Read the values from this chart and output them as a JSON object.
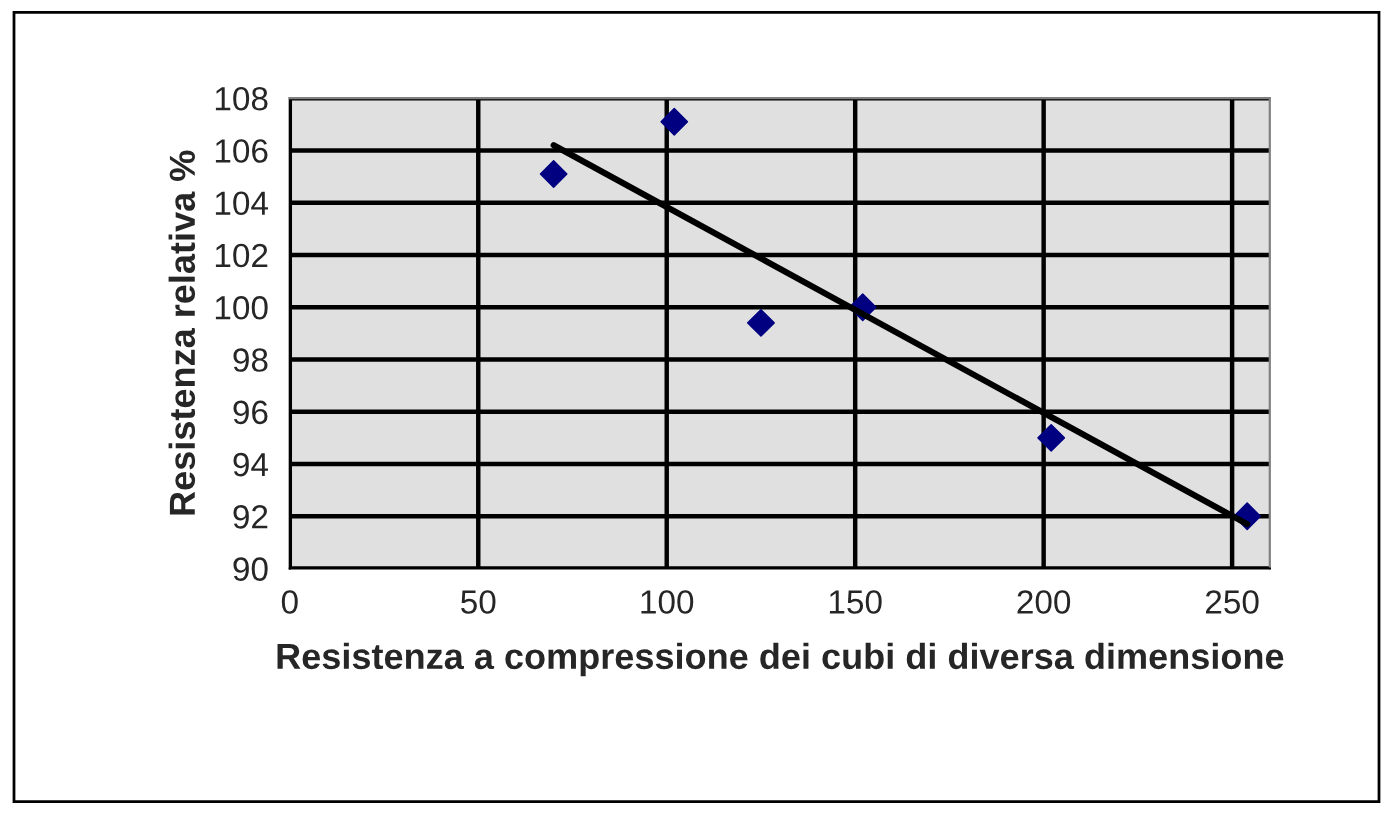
{
  "chart_data": {
    "type": "scatter",
    "xlabel": "Resistenza a compressione dei cubi di diversa dimensione",
    "ylabel": "Resistenza relativa %",
    "x": [
      70,
      102,
      125,
      152,
      202,
      254
    ],
    "series": [
      {
        "color": "#000080",
        "marker": "diamond",
        "values": [
          105.1,
          107.1,
          99.4,
          100.0,
          95.0,
          92.0
        ]
      },
      {
        "type": "line",
        "color": "#000000",
        "marker": "none",
        "line_style": "solid",
        "x": [
          70,
          254
        ],
        "values": [
          106.2,
          91.7
        ]
      }
    ],
    "xlim": [
      0,
      260
    ],
    "xticks": [
      0,
      50,
      100,
      150,
      200,
      250
    ],
    "ylim": [
      90,
      108
    ],
    "yticks": [
      90,
      92,
      94,
      96,
      98,
      100,
      102,
      104,
      106,
      108
    ],
    "grid": true,
    "legend": false
  }
}
